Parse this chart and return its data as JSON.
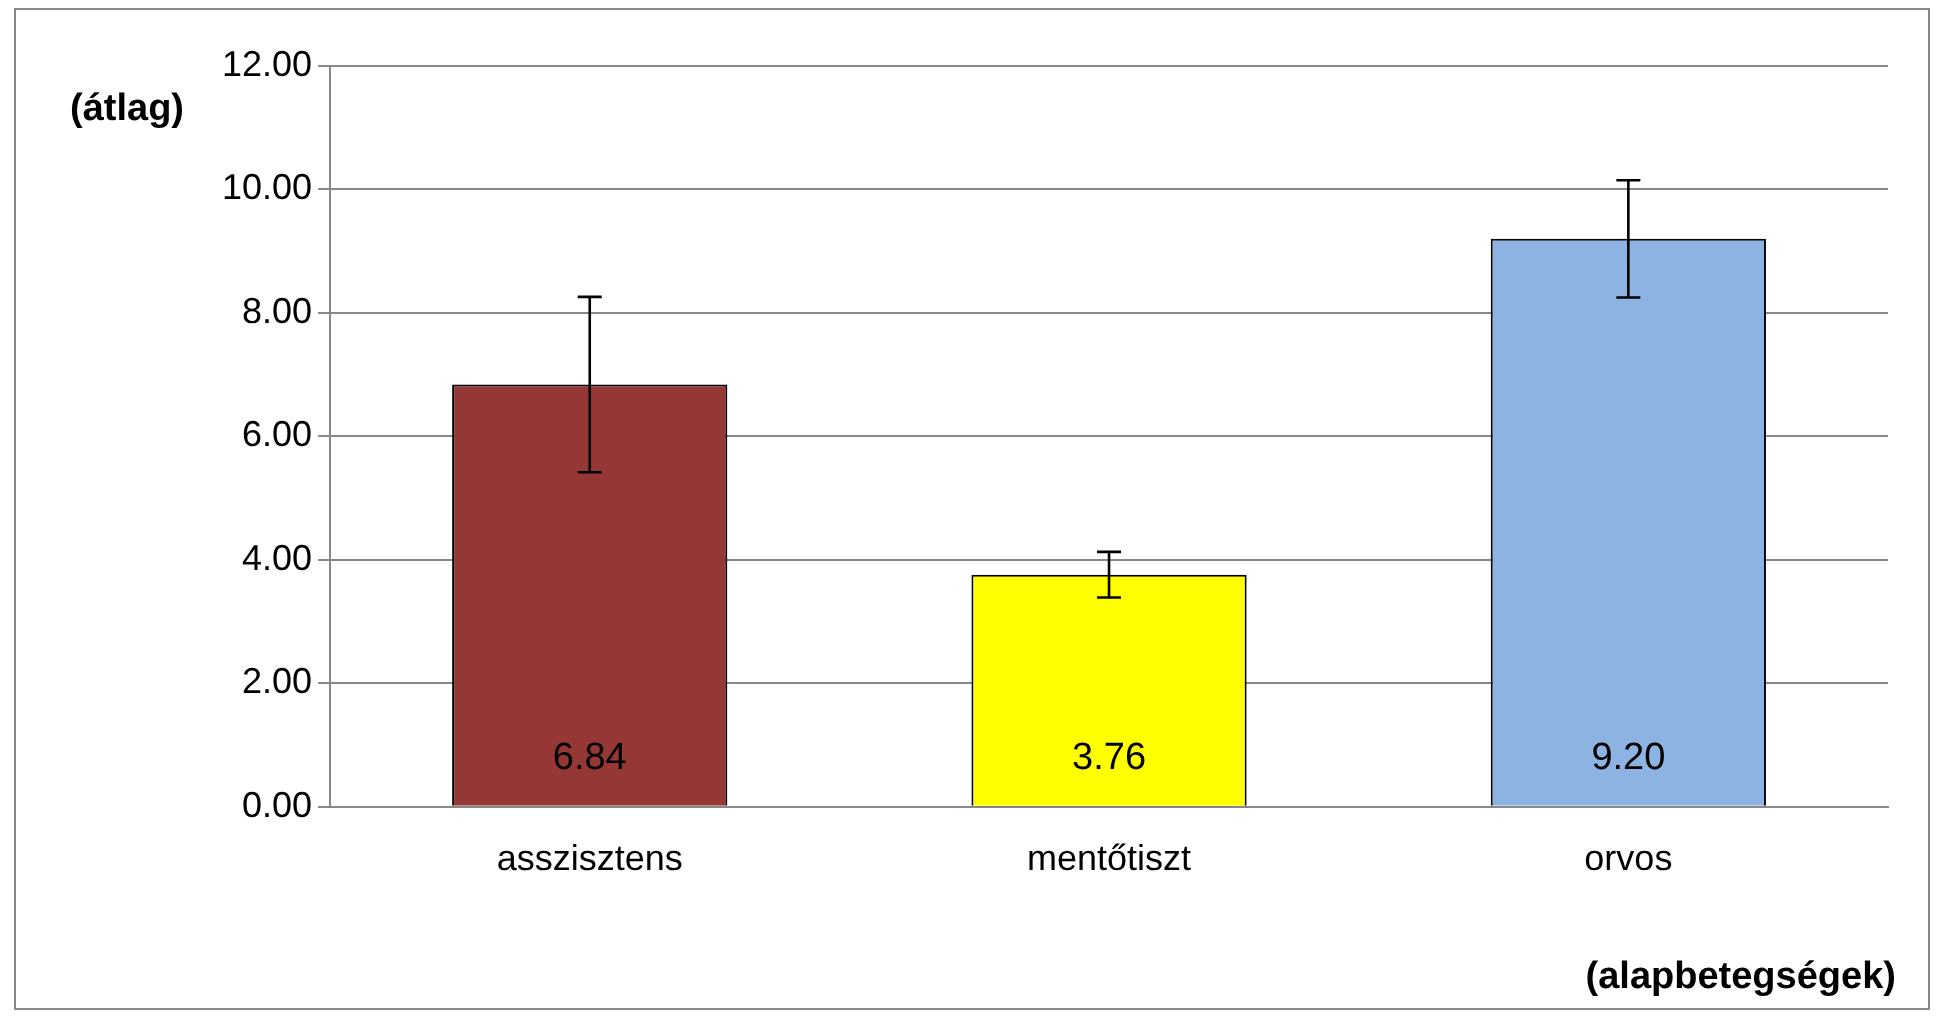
{
  "chart_data": {
    "type": "bar",
    "ylabel": "(átlag)",
    "xlabel": "(alapbetegségek)",
    "categories": [
      "asszisztens",
      "mentőtiszt",
      "orvos"
    ],
    "values": [
      6.84,
      3.76,
      9.2
    ],
    "colors": [
      "#953735",
      "#ffff00",
      "#8db3e2"
    ],
    "errors": [
      1.42,
      0.37,
      0.95
    ],
    "value_labels": [
      "6.84",
      "3.76",
      "9.20"
    ],
    "ylim": [
      0,
      12
    ],
    "yticks": [
      {
        "value": 0,
        "label": "0.00"
      },
      {
        "value": 2,
        "label": "2.00"
      },
      {
        "value": 4,
        "label": "4.00"
      },
      {
        "value": 6,
        "label": "6.00"
      },
      {
        "value": 8,
        "label": "8.00"
      },
      {
        "value": 10,
        "label": "10.00"
      },
      {
        "value": 12,
        "label": "12.00"
      }
    ],
    "grid": "y",
    "legend": false
  }
}
